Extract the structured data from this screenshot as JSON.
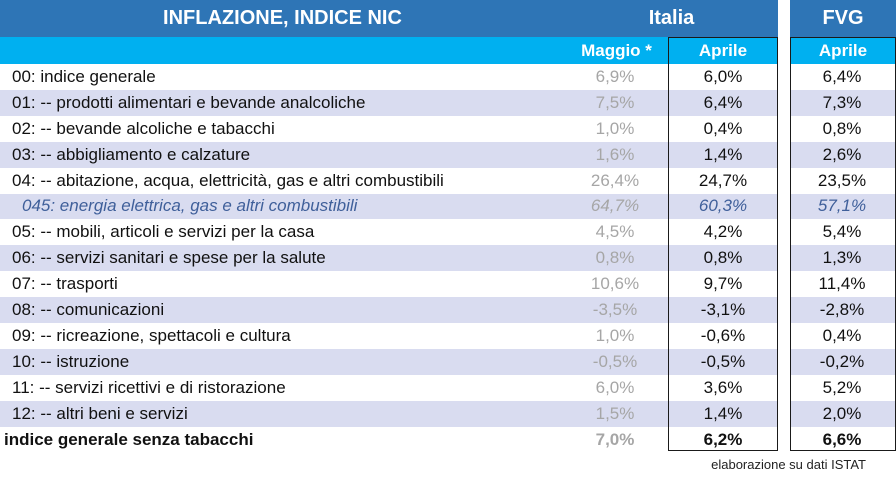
{
  "header": {
    "title": "INFLAZIONE, INDICE NIC",
    "italia": "Italia",
    "fvg": "FVG",
    "col_maggio": "Maggio *",
    "col_aprile_italia": "Aprile",
    "col_aprile_fvg": "Aprile"
  },
  "rows": [
    {
      "label": "00: indice generale",
      "maggio": "6,9%",
      "aprile": "6,0%",
      "fvg": "6,4%"
    },
    {
      "label": "01: -- prodotti alimentari e bevande analcoliche",
      "maggio": "7,5%",
      "aprile": "6,4%",
      "fvg": "7,3%"
    },
    {
      "label": "02: -- bevande alcoliche e tabacchi",
      "maggio": "1,0%",
      "aprile": "0,4%",
      "fvg": "0,8%"
    },
    {
      "label": "03: -- abbigliamento e calzature",
      "maggio": "1,6%",
      "aprile": "1,4%",
      "fvg": "2,6%"
    },
    {
      "label": "04: -- abitazione, acqua, elettricità, gas e altri combustibili",
      "maggio": "26,4%",
      "aprile": "24,7%",
      "fvg": "23,5%"
    },
    {
      "label": "045: energia elettrica, gas e altri combustibili",
      "maggio": "64,7%",
      "aprile": "60,3%",
      "fvg": "57,1%"
    },
    {
      "label": "05: -- mobili, articoli e servizi per la casa",
      "maggio": "4,5%",
      "aprile": "4,2%",
      "fvg": "5,4%"
    },
    {
      "label": "06: -- servizi sanitari e spese per la salute",
      "maggio": "0,8%",
      "aprile": "0,8%",
      "fvg": "1,3%"
    },
    {
      "label": "07: -- trasporti",
      "maggio": "10,6%",
      "aprile": "9,7%",
      "fvg": "11,4%"
    },
    {
      "label": "08: -- comunicazioni",
      "maggio": "-3,5%",
      "aprile": "-3,1%",
      "fvg": "-2,8%"
    },
    {
      "label": "09: -- ricreazione, spettacoli e cultura",
      "maggio": "1,0%",
      "aprile": "-0,6%",
      "fvg": "0,4%"
    },
    {
      "label": "10: -- istruzione",
      "maggio": "-0,5%",
      "aprile": "-0,5%",
      "fvg": "-0,2%"
    },
    {
      "label": "11: -- servizi ricettivi e di ristorazione",
      "maggio": "6,0%",
      "aprile": "3,6%",
      "fvg": "5,2%"
    },
    {
      "label": "12: -- altri beni e servizi",
      "maggio": "1,5%",
      "aprile": "1,4%",
      "fvg": "2,0%"
    },
    {
      "label": "indice generale senza tabacchi",
      "maggio": "7,0%",
      "aprile": "6,2%",
      "fvg": "6,6%"
    }
  ],
  "footnote": "elaborazione su dati ISTAT",
  "colors": {
    "header_blue": "#2e75b6",
    "subheader_cyan": "#00b0f0",
    "row_shade": "#d9dcf0",
    "maggio_grey": "#a6a6a6",
    "subcategory_blue": "#3f5f9a"
  }
}
